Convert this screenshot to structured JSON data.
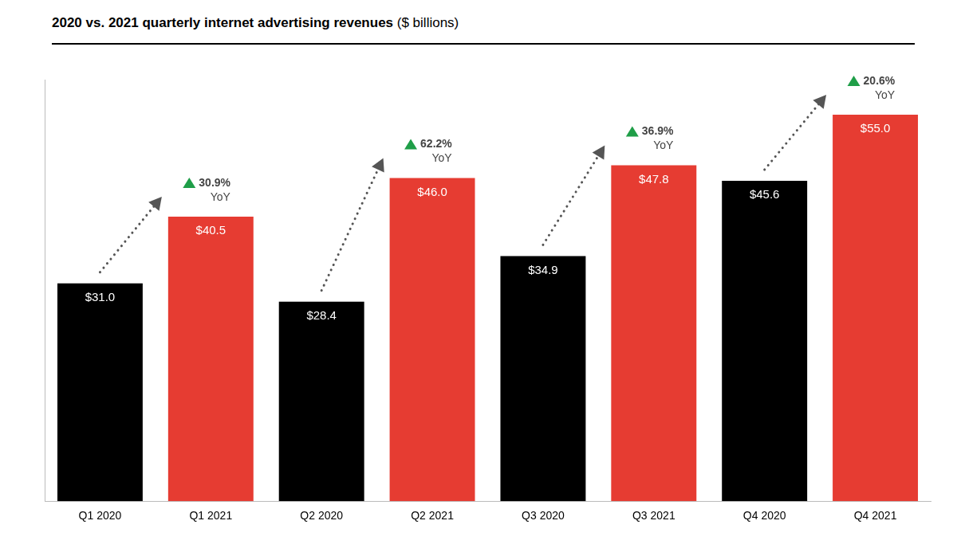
{
  "chart_data": {
    "type": "bar",
    "title": "2020 vs. 2021 quarterly internet advertising revenues",
    "subtitle": "($ billions)",
    "categories": [
      "Q1 2020",
      "Q1 2021",
      "Q2 2020",
      "Q2 2021",
      "Q3 2020",
      "Q3 2021",
      "Q4 2020",
      "Q4 2021"
    ],
    "values": [
      31.0,
      40.5,
      28.4,
      46.0,
      34.9,
      47.8,
      45.6,
      55.0
    ],
    "value_labels": [
      "$31.0",
      "$40.5",
      "$28.4",
      "$46.0",
      "$34.9",
      "$47.8",
      "$45.6",
      "$55.0"
    ],
    "colors": [
      "#000000",
      "#e63c32",
      "#000000",
      "#e63c32",
      "#000000",
      "#e63c32",
      "#000000",
      "#e63c32"
    ],
    "ylim": [
      0,
      60
    ],
    "grid": false,
    "data_labels": true,
    "tick_labels": "x",
    "annotations": [
      {
        "from": "Q1 2020",
        "to": "Q1 2021",
        "value": 30.9,
        "label": "30.9%",
        "text": "YoY"
      },
      {
        "from": "Q2 2020",
        "to": "Q2 2021",
        "value": 62.2,
        "label": "62.2%",
        "text": "YoY"
      },
      {
        "from": "Q3 2020",
        "to": "Q3 2021",
        "value": 36.9,
        "label": "36.9%",
        "text": "YoY"
      },
      {
        "from": "Q4 2020",
        "to": "Q4 2021",
        "value": 20.6,
        "label": "20.6%",
        "text": "YoY"
      }
    ]
  }
}
